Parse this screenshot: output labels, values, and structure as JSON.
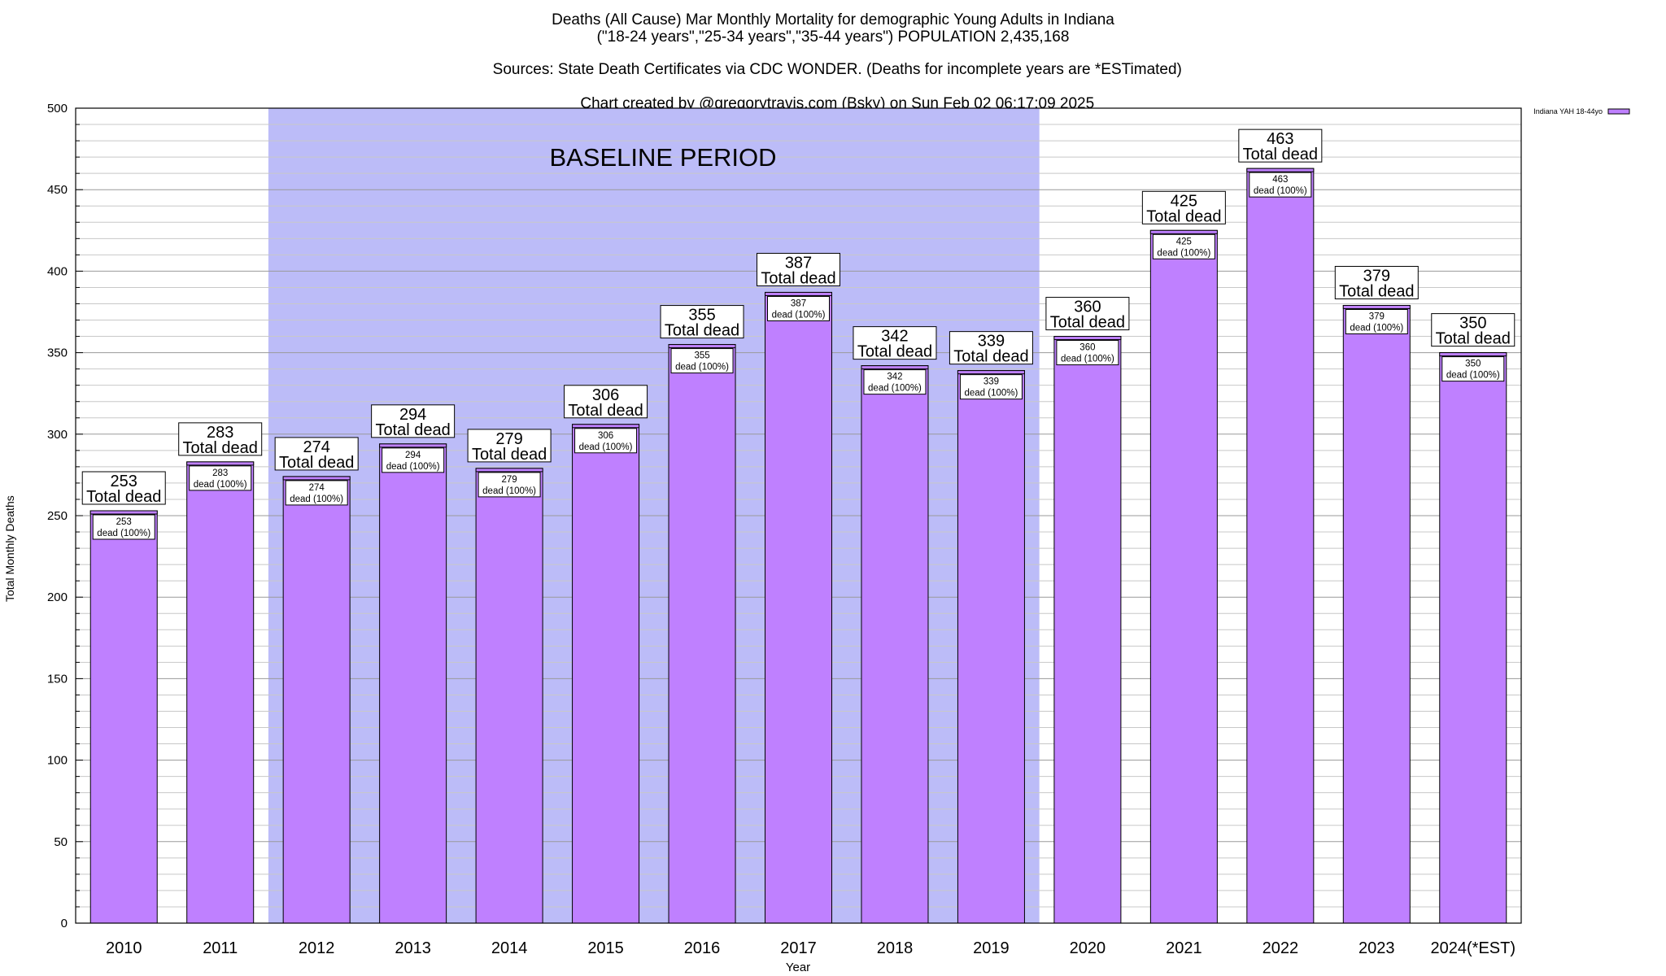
{
  "chart_data": {
    "type": "bar",
    "title": "Deaths (All Cause) Mar Monthly Mortality for demographic Young Adults in Indiana",
    "subtitle": "(\"18-24 years\",\"25-34 years\",\"35-44 years\") POPULATION 2,435,168",
    "sources": "Sources: State Death Certificates via CDC WONDER. (Deaths for incomplete years are *ESTimated)",
    "credit": "Chart created by @gregorytravis.com (Bsky) on Sun Feb 02 06:17:09 2025",
    "xlabel": "Year",
    "ylabel": "Total Monthly Deaths",
    "ylim": [
      0,
      500
    ],
    "yticks": [
      0,
      50,
      100,
      150,
      200,
      250,
      300,
      350,
      400,
      450,
      500
    ],
    "grid": true,
    "categories": [
      "2010",
      "2011",
      "2012",
      "2013",
      "2014",
      "2015",
      "2016",
      "2017",
      "2018",
      "2019",
      "2020",
      "2021",
      "2022",
      "2023",
      "2024(*EST)"
    ],
    "series": [
      {
        "name": "Indiana YAH 18-44yo",
        "color": "#bf80ff",
        "values": [
          253,
          283,
          274,
          294,
          279,
          306,
          355,
          387,
          342,
          339,
          360,
          425,
          463,
          379,
          350
        ]
      }
    ],
    "top_labels": [
      "253",
      "283",
      "274",
      "294",
      "279",
      "306",
      "355",
      "387",
      "342",
      "339",
      "360",
      "425",
      "463",
      "379",
      "350"
    ],
    "top_label_suffix": "Total dead",
    "inner_labels": [
      "253",
      "283",
      "274",
      "294",
      "279",
      "306",
      "355",
      "387",
      "342",
      "339",
      "360",
      "425",
      "463",
      "379",
      "350"
    ],
    "inner_label_suffix": "dead (100%)",
    "baseline": {
      "label": "BASELINE PERIOD",
      "from": "2012",
      "to": "2019",
      "color": "#bcbcf8"
    },
    "legend_position": "top-right"
  }
}
